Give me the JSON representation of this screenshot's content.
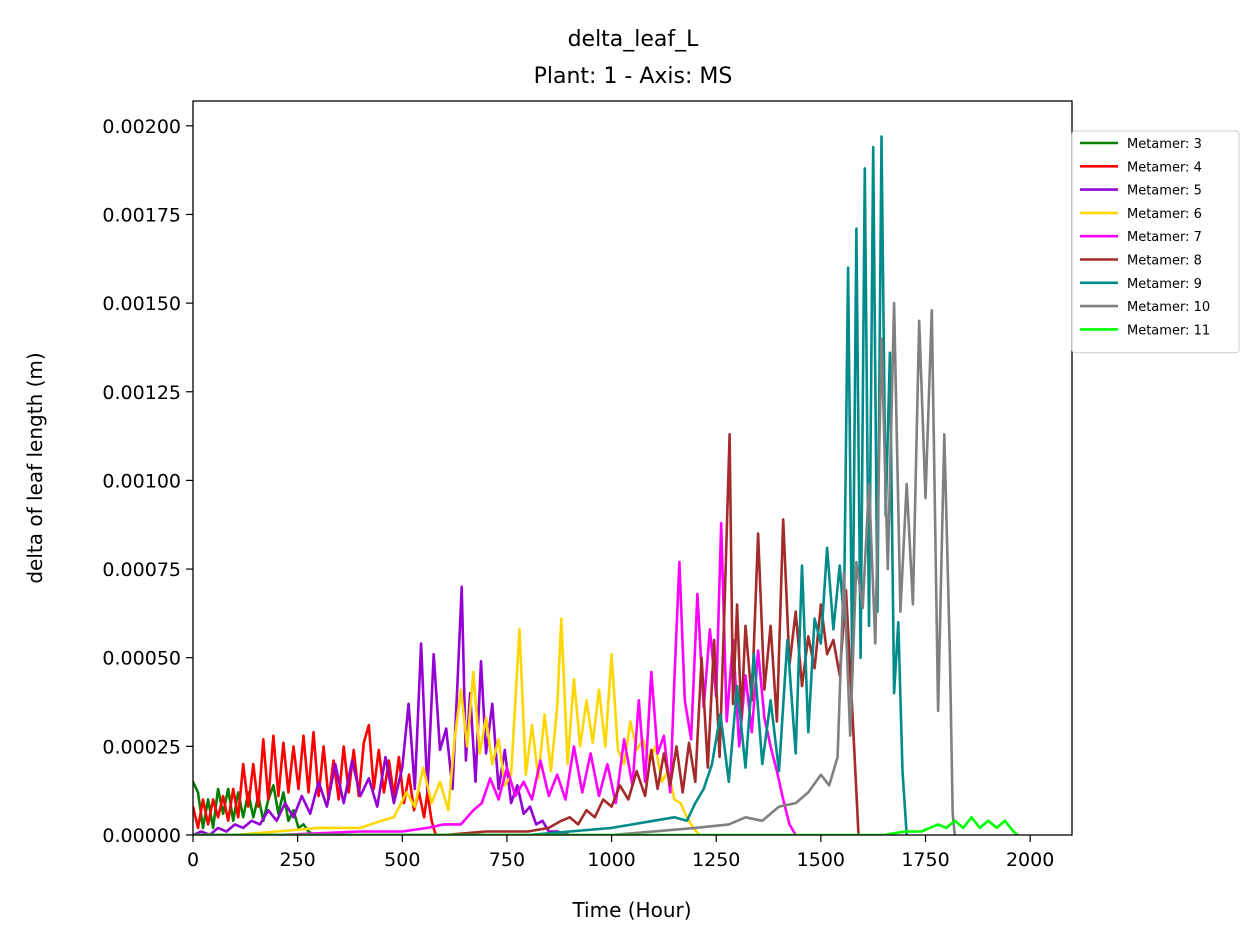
{
  "chart_data": {
    "type": "line",
    "title": "delta_leaf_L",
    "subtitle": "Plant: 1 - Axis: MS",
    "xlabel": "Time (Hour)",
    "ylabel": "delta of leaf length (m)",
    "xlim": [
      0,
      2100
    ],
    "ylim": [
      0,
      0.00207
    ],
    "xticks": [
      0,
      250,
      500,
      750,
      1000,
      1250,
      1500,
      1750,
      2000
    ],
    "xtick_labels": [
      "0",
      "250",
      "500",
      "750",
      "1000",
      "1250",
      "1500",
      "1750",
      "2000"
    ],
    "yticks": [
      0,
      0.00025,
      0.0005,
      0.00075,
      0.001,
      0.00125,
      0.0015,
      0.00175,
      0.002
    ],
    "ytick_labels": [
      "0.00000",
      "0.00025",
      "0.00050",
      "0.00075",
      "0.00100",
      "0.00125",
      "0.00150",
      "0.00175",
      "0.00200"
    ],
    "grid": false,
    "legend_position": "outside-top-right",
    "series": [
      {
        "name": "Metamer: 3",
        "color": "#008000",
        "x": [
          0,
          12,
          24,
          36,
          48,
          60,
          72,
          84,
          96,
          108,
          120,
          132,
          144,
          156,
          168,
          180,
          192,
          204,
          216,
          228,
          240,
          252,
          264,
          276,
          288,
          300
        ],
        "y": [
          0.00015,
          0.00012,
          2e-05,
          0.0001,
          2e-05,
          0.00013,
          6e-05,
          0.00013,
          4e-05,
          0.00012,
          5e-05,
          0.00012,
          5e-05,
          0.00011,
          4e-05,
          0.0001,
          0.00014,
          6e-05,
          0.00012,
          4e-05,
          7e-05,
          2e-05,
          3e-05,
          1e-05,
          0.0,
          0.0
        ]
      },
      {
        "name": "Metamer: 4",
        "color": "#ff0000",
        "x": [
          0,
          12,
          24,
          36,
          48,
          60,
          72,
          84,
          96,
          108,
          120,
          132,
          144,
          156,
          168,
          180,
          192,
          204,
          216,
          228,
          240,
          252,
          264,
          276,
          288,
          300,
          312,
          324,
          336,
          348,
          360,
          372,
          384,
          396,
          408,
          420,
          432,
          444,
          456,
          468,
          480,
          492,
          504,
          516,
          528,
          540,
          552,
          560,
          570,
          580
        ],
        "y": [
          8e-05,
          2e-05,
          0.0001,
          3e-05,
          0.0001,
          5e-05,
          0.00011,
          4e-05,
          0.00013,
          5e-05,
          0.0002,
          8e-05,
          0.0002,
          8e-05,
          0.00027,
          0.0001,
          0.00028,
          0.00011,
          0.00026,
          0.00012,
          0.00025,
          0.00013,
          0.00028,
          0.00012,
          0.00029,
          0.00011,
          0.00025,
          0.0001,
          0.00021,
          0.0001,
          0.00025,
          0.00012,
          0.00024,
          0.00011,
          0.00026,
          0.00031,
          0.00013,
          0.00024,
          0.00012,
          0.00021,
          0.00011,
          0.00022,
          9e-05,
          0.00017,
          7e-05,
          0.00012,
          5e-05,
          0.00012,
          4e-05,
          0.0
        ]
      },
      {
        "name": "Metamer: 5",
        "color": "#9400d3",
        "x": [
          0,
          20,
          40,
          60,
          80,
          100,
          120,
          140,
          160,
          180,
          200,
          220,
          240,
          260,
          280,
          300,
          320,
          340,
          360,
          380,
          400,
          420,
          440,
          460,
          480,
          500,
          515,
          530,
          545,
          560,
          575,
          590,
          605,
          620,
          632,
          642,
          652,
          662,
          675,
          688,
          700,
          715,
          730,
          745,
          760,
          775,
          790,
          805,
          820,
          835,
          850,
          870,
          900
        ],
        "y": [
          0.0,
          1e-05,
          0.0,
          2e-05,
          1e-05,
          3e-05,
          2e-05,
          4e-05,
          3e-05,
          7e-05,
          4e-05,
          9e-05,
          5e-05,
          0.00011,
          6e-05,
          0.00015,
          8e-05,
          0.0002,
          9e-05,
          0.00021,
          0.00011,
          0.00016,
          8e-05,
          0.00022,
          9e-05,
          0.00019,
          0.00037,
          0.00013,
          0.00054,
          0.00012,
          0.00051,
          0.00024,
          0.0003,
          0.00013,
          0.00043,
          0.0007,
          0.00021,
          0.0004,
          0.00015,
          0.00049,
          0.00023,
          0.00037,
          0.00013,
          0.00024,
          9e-05,
          0.00014,
          6e-05,
          8e-05,
          3e-05,
          4e-05,
          1e-05,
          1e-05,
          0.0
        ]
      },
      {
        "name": "Metamer: 6",
        "color": "#ffd700",
        "x": [
          0,
          100,
          200,
          300,
          400,
          450,
          480,
          510,
          530,
          550,
          570,
          590,
          610,
          625,
          640,
          655,
          670,
          685,
          700,
          715,
          730,
          745,
          760,
          780,
          795,
          810,
          825,
          840,
          855,
          870,
          880,
          895,
          910,
          925,
          940,
          955,
          970,
          985,
          1000,
          1015,
          1030,
          1045,
          1060,
          1075,
          1090,
          1105,
          1120,
          1135,
          1150,
          1165,
          1180,
          1195,
          1210
        ],
        "y": [
          0.0,
          0.0,
          1e-05,
          2e-05,
          2e-05,
          4e-05,
          5e-05,
          0.00012,
          8e-05,
          0.00019,
          9e-05,
          0.00015,
          7e-05,
          0.00027,
          0.00041,
          0.00025,
          0.00046,
          0.00023,
          0.00033,
          0.0002,
          0.00027,
          0.00014,
          0.00017,
          0.00058,
          0.00017,
          0.00031,
          0.00016,
          0.00034,
          0.00018,
          0.00036,
          0.00061,
          0.0002,
          0.00044,
          0.00025,
          0.00038,
          0.00026,
          0.00041,
          0.00025,
          0.00051,
          0.00024,
          0.0002,
          0.00032,
          0.00024,
          0.00027,
          0.00021,
          0.00025,
          0.00015,
          0.00018,
          0.0001,
          9e-05,
          5e-05,
          2e-05,
          0.0
        ]
      },
      {
        "name": "Metamer: 7",
        "color": "#ff00ff",
        "x": [
          0,
          200,
          400,
          500,
          560,
          600,
          640,
          670,
          690,
          710,
          730,
          750,
          770,
          790,
          810,
          830,
          850,
          870,
          890,
          910,
          930,
          950,
          970,
          990,
          1010,
          1030,
          1050,
          1065,
          1080,
          1095,
          1110,
          1125,
          1140,
          1150,
          1162,
          1175,
          1190,
          1205,
          1220,
          1235,
          1250,
          1262,
          1275,
          1290,
          1305,
          1320,
          1335,
          1350,
          1365,
          1380,
          1395,
          1410,
          1425,
          1440
        ],
        "y": [
          0.0,
          0.0,
          1e-05,
          1e-05,
          2e-05,
          3e-05,
          3e-05,
          7e-05,
          9e-05,
          0.00016,
          0.0001,
          0.00019,
          0.00011,
          0.00015,
          0.0001,
          0.00021,
          0.00011,
          0.00017,
          0.0001,
          0.00025,
          0.00012,
          0.00023,
          0.00011,
          0.0002,
          9e-05,
          0.00027,
          0.00014,
          0.00038,
          0.00015,
          0.00046,
          0.00023,
          0.00028,
          0.00012,
          0.00044,
          0.00077,
          0.00038,
          0.00027,
          0.00068,
          0.00036,
          0.00058,
          0.00039,
          0.00088,
          0.00032,
          0.00055,
          0.00025,
          0.00045,
          0.00029,
          0.00052,
          0.00033,
          0.00025,
          0.00018,
          0.0001,
          3e-05,
          0.0
        ]
      },
      {
        "name": "Metamer: 8",
        "color": "#a52a2a",
        "x": [
          0,
          400,
          600,
          700,
          800,
          850,
          880,
          900,
          920,
          940,
          960,
          980,
          1000,
          1020,
          1040,
          1060,
          1080,
          1095,
          1110,
          1125,
          1140,
          1155,
          1170,
          1185,
          1200,
          1215,
          1230,
          1245,
          1258,
          1270,
          1282,
          1290,
          1300,
          1310,
          1320,
          1335,
          1350,
          1365,
          1380,
          1395,
          1410,
          1425,
          1440,
          1455,
          1470,
          1485,
          1500,
          1515,
          1530,
          1545,
          1560,
          1575,
          1585,
          1590
        ],
        "y": [
          0.0,
          0.0,
          0.0,
          1e-05,
          1e-05,
          2e-05,
          4e-05,
          5e-05,
          3e-05,
          7e-05,
          5e-05,
          0.0001,
          8e-05,
          0.00014,
          0.0001,
          0.00018,
          0.00011,
          0.00024,
          0.00013,
          0.00023,
          0.00014,
          0.00025,
          0.00012,
          0.00026,
          0.00015,
          0.0005,
          0.00019,
          0.00055,
          0.00022,
          0.00065,
          0.00113,
          0.00037,
          0.00065,
          0.00033,
          0.00059,
          0.00038,
          0.00085,
          0.00041,
          0.00059,
          0.00032,
          0.00089,
          0.00048,
          0.00063,
          0.00042,
          0.00056,
          0.00047,
          0.00065,
          0.00051,
          0.00055,
          0.00045,
          0.00069,
          0.00035,
          0.00012,
          0.0
        ]
      },
      {
        "name": "Metamer: 9",
        "color": "#008b8b",
        "x": [
          0,
          600,
          800,
          900,
          1000,
          1050,
          1100,
          1150,
          1180,
          1200,
          1220,
          1240,
          1260,
          1280,
          1300,
          1320,
          1340,
          1360,
          1380,
          1400,
          1420,
          1440,
          1455,
          1470,
          1485,
          1500,
          1515,
          1530,
          1545,
          1555,
          1565,
          1575,
          1585,
          1595,
          1605,
          1615,
          1625,
          1635,
          1645,
          1655,
          1665,
          1675,
          1685,
          1695,
          1705
        ],
        "y": [
          0.0,
          0.0,
          0.0,
          1e-05,
          2e-05,
          3e-05,
          4e-05,
          5e-05,
          4e-05,
          9e-05,
          0.00013,
          0.0002,
          0.00034,
          0.00015,
          0.00042,
          0.00019,
          0.00051,
          0.0002,
          0.00038,
          0.00018,
          0.00055,
          0.00023,
          0.00076,
          0.00029,
          0.00061,
          0.00054,
          0.00081,
          0.00058,
          0.00076,
          0.00061,
          0.0016,
          0.00045,
          0.00171,
          0.0005,
          0.00188,
          0.00059,
          0.00194,
          0.00063,
          0.00197,
          0.0009,
          0.00136,
          0.0004,
          0.0006,
          0.00018,
          0.0
        ]
      },
      {
        "name": "Metamer: 10",
        "color": "#808080",
        "x": [
          0,
          1000,
          1200,
          1280,
          1320,
          1360,
          1400,
          1440,
          1470,
          1500,
          1520,
          1540,
          1555,
          1570,
          1585,
          1600,
          1615,
          1630,
          1645,
          1660,
          1675,
          1690,
          1705,
          1720,
          1735,
          1750,
          1765,
          1780,
          1795,
          1808,
          1815,
          1820
        ],
        "y": [
          0.0,
          0.0,
          2e-05,
          3e-05,
          5e-05,
          4e-05,
          8e-05,
          9e-05,
          0.00012,
          0.00017,
          0.00014,
          0.00022,
          0.00074,
          0.00028,
          0.00077,
          0.00064,
          0.00099,
          0.00054,
          0.0014,
          0.00075,
          0.0015,
          0.00063,
          0.00099,
          0.00065,
          0.00145,
          0.00095,
          0.00148,
          0.00035,
          0.00113,
          0.00052,
          6e-05,
          0.0
        ]
      },
      {
        "name": "Metamer: 11",
        "color": "#00ff00",
        "x": [
          0,
          1650,
          1700,
          1740,
          1760,
          1780,
          1800,
          1820,
          1840,
          1860,
          1880,
          1900,
          1920,
          1940,
          1960,
          1970
        ],
        "y": [
          0.0,
          0.0,
          1e-05,
          1e-05,
          2e-05,
          3e-05,
          2e-05,
          4e-05,
          2e-05,
          5e-05,
          2e-05,
          4e-05,
          2e-05,
          4e-05,
          1e-05,
          0.0
        ]
      }
    ]
  }
}
